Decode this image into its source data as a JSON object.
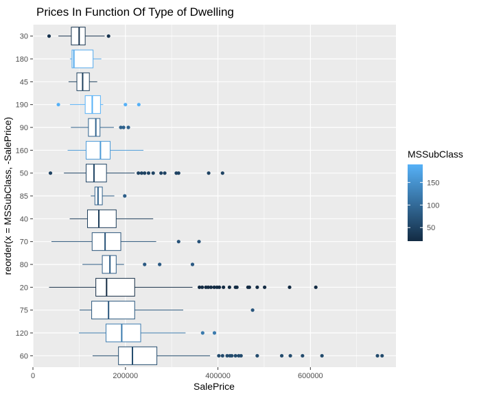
{
  "chart_data": {
    "type": "boxplot",
    "title": "Prices In Function Of Type of Dwelling",
    "xlabel": "SalePrice",
    "ylabel": "reorder(x = MSSubClass, -SalePrice)",
    "xlim": [
      0,
      785000
    ],
    "x_ticks": [
      0,
      200000,
      400000,
      600000
    ],
    "x_tick_labels": [
      "0",
      "200000",
      "400000",
      "600000"
    ],
    "grid": true,
    "legend": {
      "title": "MSSubClass",
      "position": "right",
      "min": 20,
      "max": 190,
      "ticks": [
        50,
        100,
        150
      ],
      "tick_labels": [
        "50",
        "100",
        "150"
      ],
      "low_color": "#132B43",
      "high_color": "#56B1F7"
    },
    "categories": [
      "30",
      "180",
      "45",
      "190",
      "90",
      "160",
      "50",
      "85",
      "40",
      "70",
      "80",
      "20",
      "75",
      "120",
      "60"
    ],
    "boxes": [
      {
        "cls": 30,
        "lo": 55000,
        "q1": 83000,
        "med": 99900,
        "q3": 113000,
        "hi": 155000,
        "out": [
          34900,
          163500
        ]
      },
      {
        "cls": 180,
        "lo": 80000,
        "q1": 84500,
        "med": 88500,
        "q3": 130000,
        "hi": 148000,
        "out": []
      },
      {
        "cls": 45,
        "lo": 77000,
        "q1": 95000,
        "med": 107500,
        "q3": 122000,
        "hi": 139000,
        "out": []
      },
      {
        "cls": 190,
        "lo": 80000,
        "q1": 113000,
        "med": 128250,
        "q3": 146000,
        "hi": 152000,
        "out": [
          55000,
          200000,
          228950
        ]
      },
      {
        "cls": 90,
        "lo": 82000,
        "q1": 120000,
        "med": 135980,
        "q3": 145000,
        "hi": 175000,
        "out": [
          190000,
          196000,
          206300
        ]
      },
      {
        "cls": 160,
        "lo": 75000,
        "q1": 115000,
        "med": 146000,
        "q3": 167000,
        "hi": 239000,
        "out": []
      },
      {
        "cls": 50,
        "lo": 67000,
        "q1": 115000,
        "med": 132000,
        "q3": 159000,
        "hi": 220000,
        "out": [
          37900,
          228000,
          235000,
          241500,
          250000,
          260000,
          277000,
          285000,
          310000,
          315000,
          380000,
          410000
        ]
      },
      {
        "cls": 85,
        "lo": 125000,
        "q1": 134000,
        "med": 140750,
        "q3": 150000,
        "hi": 176000,
        "out": [
          198500
        ]
      },
      {
        "cls": 40,
        "lo": 79500,
        "q1": 118000,
        "med": 142500,
        "q3": 180000,
        "hi": 260000,
        "out": []
      },
      {
        "cls": 70,
        "lo": 40000,
        "q1": 128000,
        "med": 156000,
        "q3": 190000,
        "hi": 266500,
        "out": [
          315000,
          359100
        ]
      },
      {
        "cls": 80,
        "lo": 107000,
        "q1": 150000,
        "med": 166500,
        "q3": 180000,
        "hi": 197000,
        "out": [
          241500,
          274000,
          345000
        ]
      },
      {
        "cls": 20,
        "lo": 34900,
        "q1": 136000,
        "med": 159250,
        "q3": 220000,
        "hi": 345000,
        "out": [
          360000,
          366000,
          374000,
          379000,
          385000,
          392000,
          398000,
          403000,
          412000,
          425000,
          438000,
          441000,
          465000,
          468000,
          485000,
          501000,
          555000,
          611657
        ]
      },
      {
        "cls": 75,
        "lo": 101000,
        "q1": 127000,
        "med": 163500,
        "q3": 220000,
        "hi": 325000,
        "out": [
          475000
        ]
      },
      {
        "cls": 120,
        "lo": 99500,
        "q1": 158000,
        "med": 192000,
        "q3": 233000,
        "hi": 330000,
        "out": [
          367000,
          392500
        ]
      },
      {
        "cls": 60,
        "lo": 129000,
        "q1": 185000,
        "med": 215200,
        "q3": 268000,
        "hi": 383000,
        "out": [
          402000,
          410000,
          420000,
          426000,
          430000,
          438000,
          445000,
          450000,
          485000,
          538000,
          556581,
          582933,
          625000,
          745000,
          755000
        ]
      }
    ]
  }
}
